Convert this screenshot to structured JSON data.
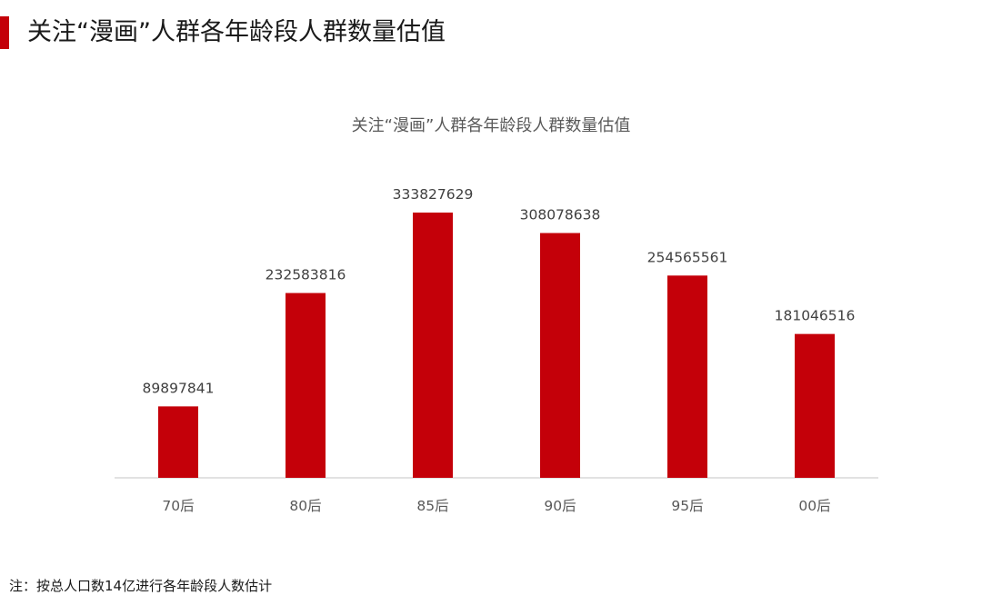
{
  "page": {
    "title": "关注“漫画”人群各年龄段人群数量估值",
    "accent_color": "#c40009"
  },
  "chart_data": {
    "type": "bar",
    "title": "关注“漫画”人群各年龄段人群数量估值",
    "xlabel": "",
    "ylabel": "",
    "categories": [
      "70后",
      "80后",
      "85后",
      "90后",
      "95后",
      "00后"
    ],
    "values": [
      89897841,
      232583816,
      333827629,
      308078638,
      254565561,
      181046516
    ],
    "ylim": [
      0,
      333827629
    ],
    "grid": false,
    "legend": "none",
    "bar_color": "#c40009",
    "data_labels": true
  },
  "footnote": "注：按总人口数14亿进行各年龄段人数估计"
}
